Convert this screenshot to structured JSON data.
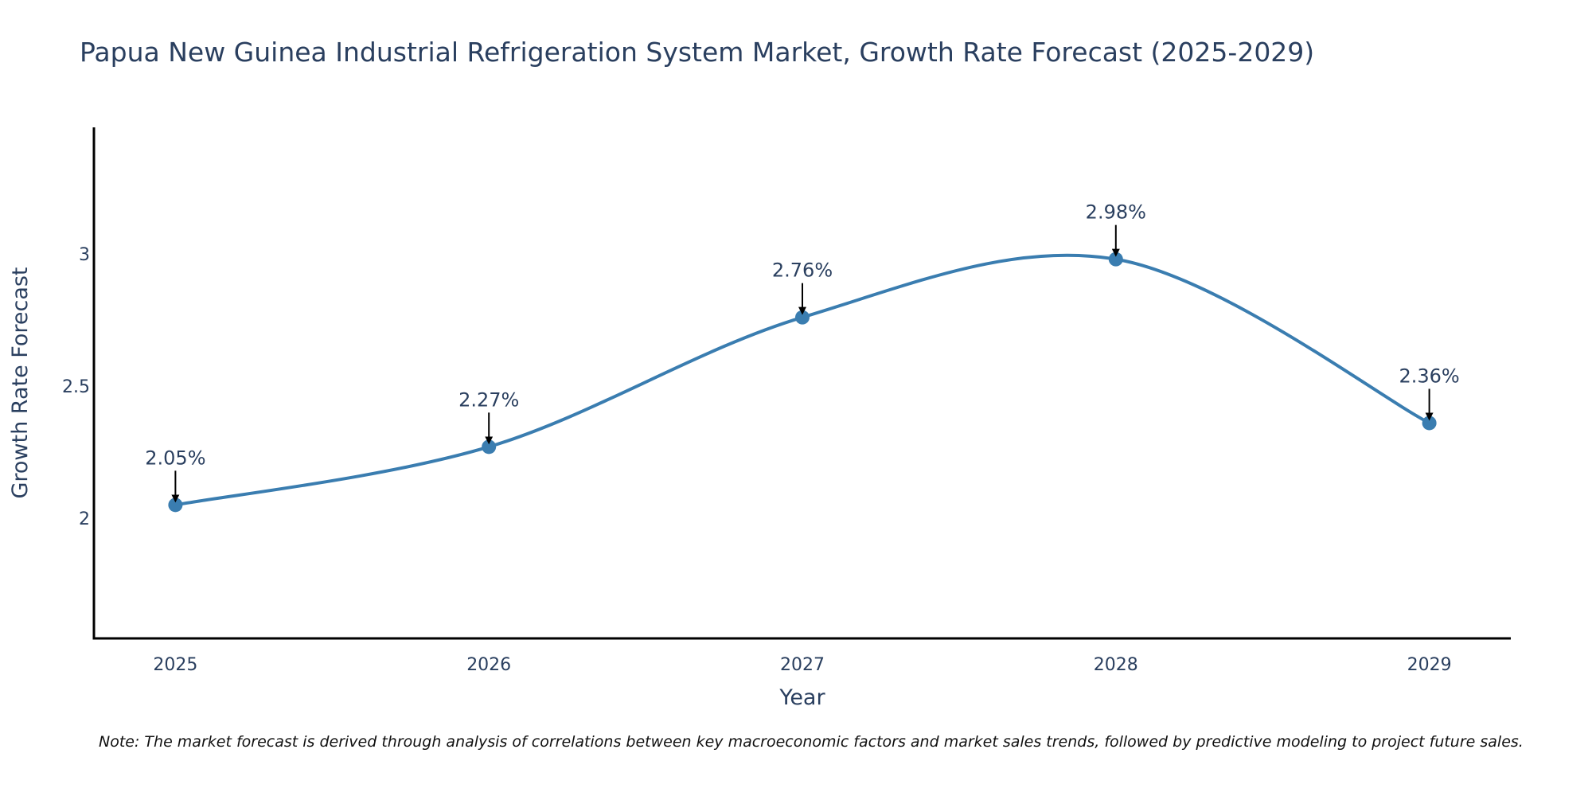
{
  "chart_data": {
    "type": "line",
    "title": "Papua New Guinea Industrial Refrigeration System Market, Growth Rate Forecast (2025-2029)",
    "xlabel": "Year",
    "ylabel": "Growth Rate Forecast",
    "categories": [
      "2025",
      "2026",
      "2027",
      "2028",
      "2029"
    ],
    "series": [
      {
        "name": "Growth Rate Forecast",
        "values": [
          2.05,
          2.27,
          2.76,
          2.98,
          2.36
        ],
        "labels": [
          "2.05%",
          "2.27%",
          "2.76%",
          "2.98%",
          "2.36%"
        ],
        "color": "#3a7db0",
        "line_shape": "spline"
      }
    ],
    "yticks": [
      2,
      2.5,
      3
    ],
    "ytick_labels": [
      "2",
      "2.5",
      "3"
    ],
    "ylim": [
      1.545,
      3.479
    ],
    "xlim": [
      2024.74,
      2029.26
    ],
    "grid": false,
    "legend": "none",
    "annotation_arrow_color": "#000000"
  },
  "note": "Note: The market forecast is derived through analysis of correlations between key macroeconomic factors and market sales trends, followed by predictive modeling to project future sales."
}
